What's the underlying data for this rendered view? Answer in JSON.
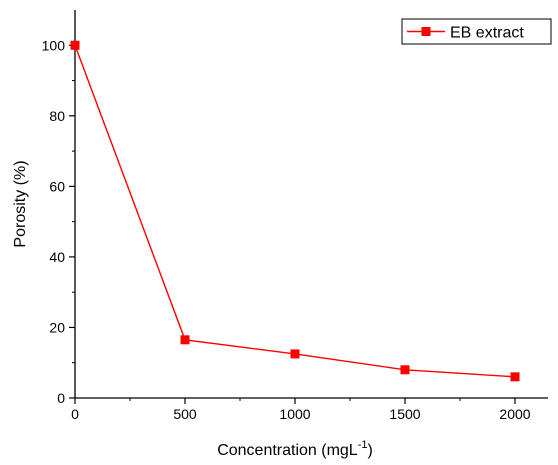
{
  "chart_data": {
    "type": "line",
    "title": "",
    "xlabel": "Concentration (mgL",
    "xlabel_superscript": "-1",
    "xlabel_suffix": ")",
    "ylabel": "Porosity (%)",
    "x": [
      0,
      500,
      1000,
      1500,
      2000
    ],
    "xlim": [
      0,
      2150
    ],
    "ylim": [
      0,
      110
    ],
    "x_ticks": [
      0,
      500,
      1000,
      1500,
      2000
    ],
    "y_ticks": [
      0,
      20,
      40,
      60,
      80,
      100
    ],
    "x_tick_labels": [
      "0",
      "500",
      "1000",
      "1500",
      "2000"
    ],
    "y_tick_labels": [
      "0",
      "20",
      "40",
      "60",
      "80",
      "100"
    ],
    "series": [
      {
        "name": "EB extract",
        "values": [
          100,
          16.5,
          12.5,
          8,
          6
        ],
        "color": "#ff0000",
        "marker": "square"
      }
    ],
    "legend_position": "top-right",
    "grid": false
  }
}
